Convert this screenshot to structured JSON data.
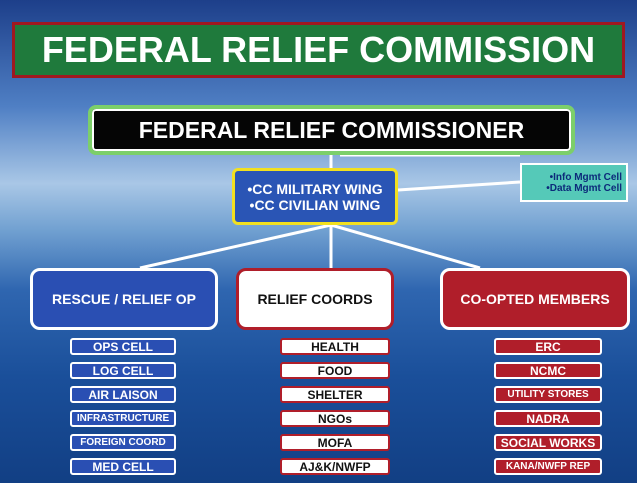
{
  "title": "FEDERAL RELIEF COMMISSION",
  "commissioner": "FEDERAL RELIEF COMMISSIONER",
  "wings": [
    "•CC MILITARY WING",
    "•CC CIVILIAN WING"
  ],
  "side_note": [
    "•Info Mgmt Cell",
    "•Data Mgmt Cell"
  ],
  "branches": [
    {
      "label": "RESCUE / RELIEF OP",
      "items": [
        "OPS CELL",
        "LOG CELL",
        "AIR LAISON",
        "INFRASTRUCTURE",
        "FOREIGN COORD",
        "MED CELL"
      ]
    },
    {
      "label": "RELIEF COORDS",
      "items": [
        "HEALTH",
        "FOOD",
        "SHELTER",
        "NGOs",
        "MOFA",
        "AJ&K/NWFP"
      ]
    },
    {
      "label": "CO-OPTED MEMBERS",
      "items": [
        "ERC",
        "NCMC",
        "UTILITY STORES",
        "NADRA",
        "SOCIAL WORKS",
        "KANA/NWFP REP"
      ]
    }
  ]
}
